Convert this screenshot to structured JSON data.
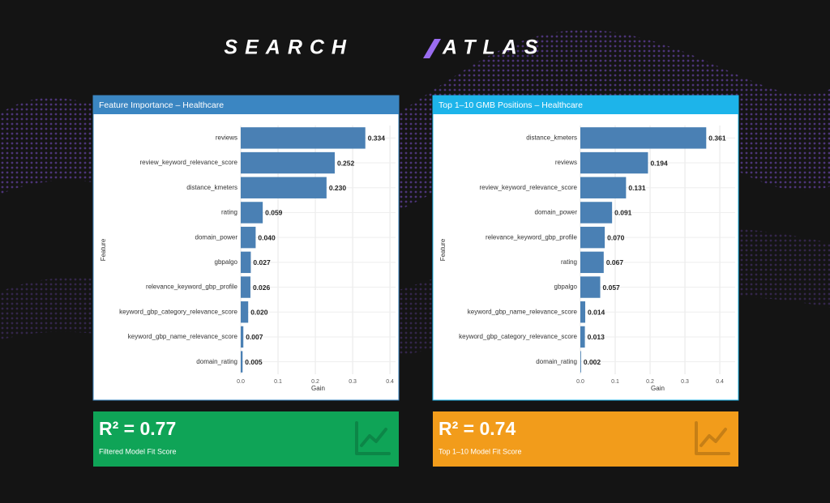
{
  "brand": {
    "left": "SEARCH",
    "right": "ATLAS"
  },
  "chart_data": [
    {
      "type": "bar",
      "orientation": "horizontal",
      "title": "Feature Importance – Healthcare",
      "x_label": "Gain",
      "y_label": "Feature",
      "categories": [
        "reviews",
        "review_keyword_relevance_score",
        "distance_kmeters",
        "rating",
        "domain_power",
        "gbpalgo",
        "relevance_keyword_gbp_profile",
        "keyword_gbp_category_relevance_score",
        "keyword_gbp_name_relevance_score",
        "domain_rating"
      ],
      "values": [
        0.334,
        0.252,
        0.23,
        0.059,
        0.04,
        0.027,
        0.026,
        0.02,
        0.007,
        0.005
      ],
      "value_labels": [
        "0.334",
        "0.252",
        "0.230",
        "0.059",
        "0.040",
        "0.027",
        "0.026",
        "0.020",
        "0.007",
        "0.005"
      ],
      "color": "#4a80b4",
      "header_color": "#3b86c2",
      "xlim": [
        0,
        0.415
      ],
      "xticks": [
        {
          "value": 0,
          "label": "0.0"
        },
        0.1,
        0.2,
        0.3,
        0.4
      ],
      "grid": true
    },
    {
      "type": "bar",
      "orientation": "horizontal",
      "title": "Top 1–10 GMB Positions – Healthcare",
      "x_label": "Gain",
      "y_label": "Feature",
      "categories": [
        "distance_kmeters",
        "reviews",
        "review_keyword_relevance_score",
        "domain_power",
        "relevance_keyword_gbp_profile",
        "rating",
        "gbpalgo",
        "keyword_gbp_name_relevance_score",
        "keyword_gbp_category_relevance_score",
        "domain_rating"
      ],
      "values": [
        0.361,
        0.194,
        0.131,
        0.091,
        0.07,
        0.067,
        0.057,
        0.014,
        0.013,
        0.002
      ],
      "value_labels": [
        "0.361",
        "0.194",
        "0.131",
        "0.091",
        "0.070",
        "0.067",
        "0.057",
        "0.014",
        "0.013",
        "0.002"
      ],
      "color": "#4a80b4",
      "header_color": "#1db4ea",
      "xlim": [
        0,
        0.444
      ],
      "xticks": [
        {
          "value": 0,
          "label": "0.0"
        },
        0.1,
        0.2,
        0.3,
        0.4
      ],
      "grid": true
    }
  ],
  "cards": [
    {
      "score": "R² = 0.77",
      "caption": "Filtered Model Fit Score"
    },
    {
      "score": "R² = 0.74",
      "caption": "Top 1–10 Model Fit Score"
    }
  ]
}
